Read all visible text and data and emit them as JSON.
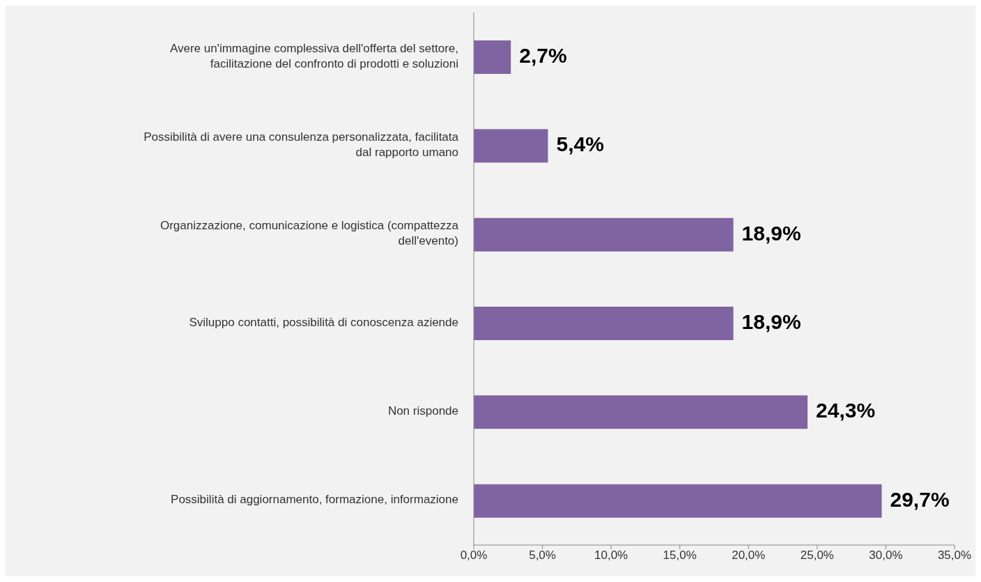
{
  "chart_data": {
    "type": "bar",
    "orientation": "horizontal",
    "categories": [
      "Avere un'immagine complessiva dell'offerta del settore, facilitazione del confronto di prodotti e soluzioni",
      "Possibilità di avere una consulenza personalizzata, facilitata dal rapporto umano",
      "Organizzazione, comunicazione e logistica (compattezza dell'evento)",
      "Sviluppo contatti, possibilità di conoscenza aziende",
      "Non risponde",
      "Possibilità di aggiornamento, formazione, informazione"
    ],
    "values": [
      2.7,
      5.4,
      18.9,
      18.9,
      24.3,
      29.7
    ],
    "value_labels": [
      "2,7%",
      "5,4%",
      "18,9%",
      "18,9%",
      "24,3%",
      "29,7%"
    ],
    "color": "#8064a2",
    "xlim": [
      0,
      35
    ],
    "xticks": [
      {
        "value": 0,
        "label": "0,0%"
      },
      {
        "value": 5,
        "label": "5,0%"
      },
      {
        "value": 10,
        "label": "10,0%"
      },
      {
        "value": 15,
        "label": "15,0%"
      },
      {
        "value": 20,
        "label": "20,0%"
      },
      {
        "value": 25,
        "label": "25,0%"
      },
      {
        "value": 30,
        "label": "30,0%"
      },
      {
        "value": 35,
        "label": "35,0%"
      }
    ],
    "grid": false,
    "legend": false
  }
}
